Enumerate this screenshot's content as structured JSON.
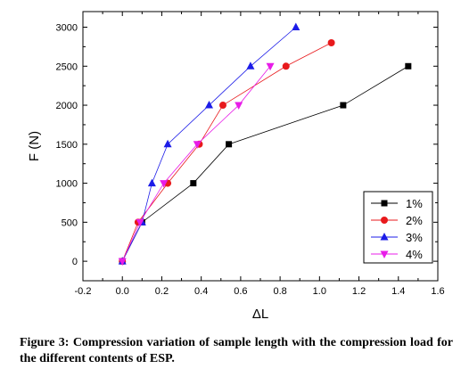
{
  "chart_data": {
    "type": "line",
    "xlabel": "ΔL",
    "ylabel": "F (N)",
    "xlim": [
      -0.2,
      1.6
    ],
    "ylim": [
      -250,
      3200
    ],
    "xticks": [
      "-0.2",
      "0.0",
      "0.2",
      "0.4",
      "0.6",
      "0.8",
      "1.0",
      "1.2",
      "1.4",
      "1.6"
    ],
    "yticks": [
      "0",
      "500",
      "1000",
      "1500",
      "2000",
      "2500",
      "3000"
    ],
    "legend_position": "bottom-right",
    "series": [
      {
        "name": "1%",
        "color": "#000000",
        "marker": "square",
        "x": [
          0.0,
          0.1,
          0.36,
          0.54,
          1.12,
          1.45
        ],
        "y": [
          0,
          500,
          1000,
          1500,
          2000,
          2500
        ]
      },
      {
        "name": "2%",
        "color": "#e8191c",
        "marker": "circle",
        "x": [
          0.0,
          0.08,
          0.23,
          0.39,
          0.51,
          0.83,
          1.06
        ],
        "y": [
          0,
          500,
          1000,
          1500,
          2000,
          2500,
          2800
        ]
      },
      {
        "name": "3%",
        "color": "#1c1ce8",
        "marker": "triangle-up",
        "x": [
          0.0,
          0.1,
          0.15,
          0.23,
          0.44,
          0.65,
          0.88
        ],
        "y": [
          0,
          500,
          1000,
          1500,
          2000,
          2500,
          3000
        ]
      },
      {
        "name": "4%",
        "color": "#e81ce8",
        "marker": "triangle-down",
        "x": [
          0.0,
          0.09,
          0.21,
          0.38,
          0.59,
          0.75
        ],
        "y": [
          0,
          500,
          1000,
          1500,
          2000,
          2500
        ]
      }
    ]
  },
  "caption": {
    "label": "Figure 3:",
    "text": "Compression variation of sample length with the compression load for the different contents of ESP."
  }
}
